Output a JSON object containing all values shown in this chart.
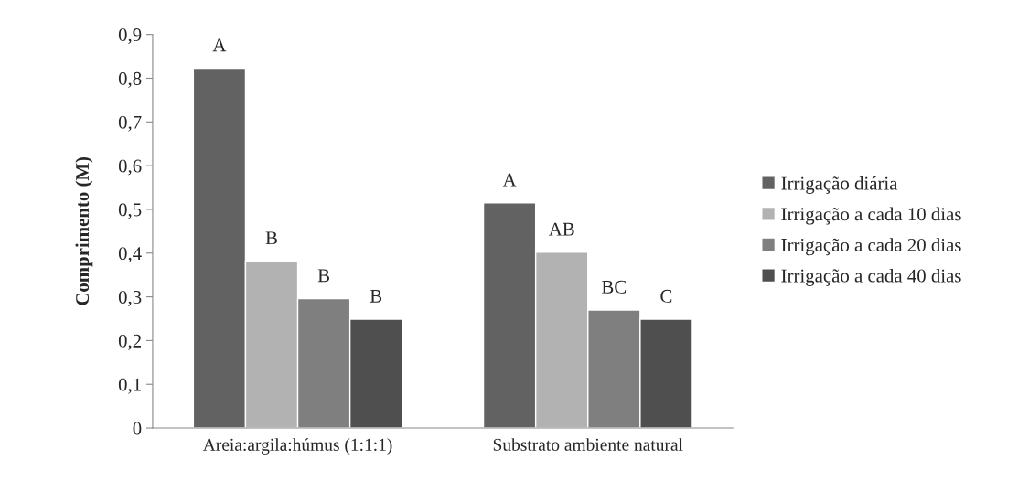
{
  "chart_data": {
    "type": "bar",
    "ylabel": "Comprimento (M)",
    "categories": [
      "Areia:argila:húmus (1:1:1)",
      "Substrato ambiente natural"
    ],
    "series": [
      {
        "name": "Irrigação diária",
        "color": "#626262",
        "values": [
          0.823,
          0.515
        ],
        "value_labels": [
          "A",
          "A"
        ]
      },
      {
        "name": "Irrigação a cada 10 dias",
        "color": "#b2b2b2",
        "values": [
          0.382,
          0.402
        ],
        "value_labels": [
          "B",
          "AB"
        ]
      },
      {
        "name": "Irrigação a cada 20 dias",
        "color": "#7f7f7f",
        "values": [
          0.296,
          0.27
        ],
        "value_labels": [
          "B",
          "BC"
        ]
      },
      {
        "name": "Irrigação a cada 40 dias",
        "color": "#4f4f4f",
        "values": [
          0.249,
          0.249
        ],
        "value_labels": [
          "B",
          "C"
        ]
      }
    ],
    "ylim": [
      0,
      0.9
    ],
    "yticks": [
      {
        "value": 0,
        "label": "0"
      },
      {
        "value": 0.1,
        "label": "0,1"
      },
      {
        "value": 0.2,
        "label": "0,2"
      },
      {
        "value": 0.3,
        "label": "0,3"
      },
      {
        "value": 0.4,
        "label": "0,4"
      },
      {
        "value": 0.5,
        "label": "0,5"
      },
      {
        "value": 0.6,
        "label": "0,6"
      },
      {
        "value": 0.7,
        "label": "0,7"
      },
      {
        "value": 0.8,
        "label": "0,8"
      },
      {
        "value": 0.9,
        "label": "0,9"
      }
    ],
    "grid": false,
    "legend": "right"
  }
}
